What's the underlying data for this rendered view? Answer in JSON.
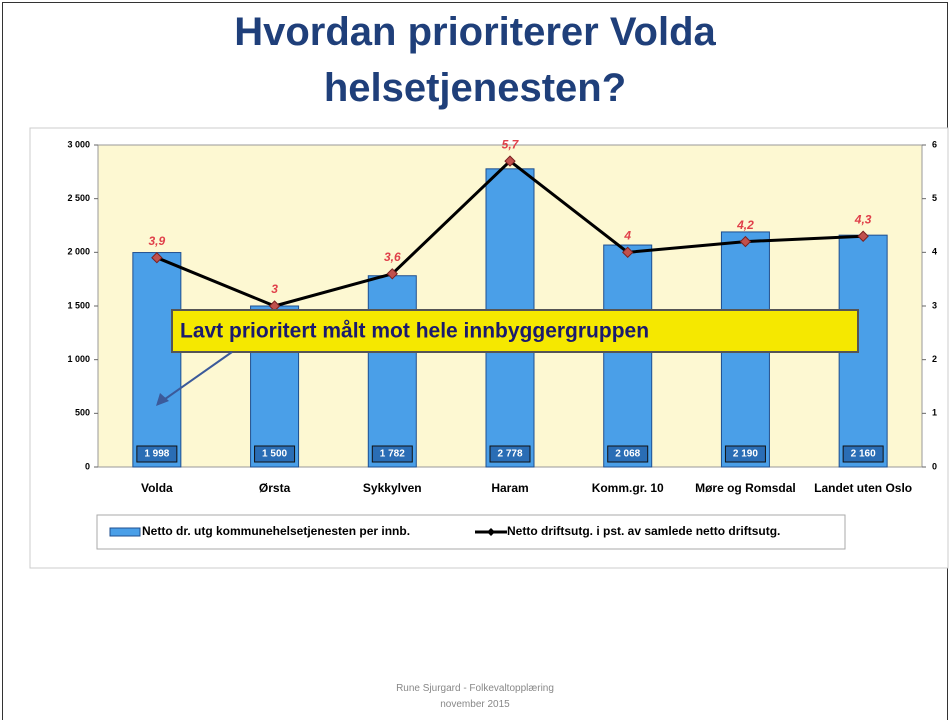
{
  "chart_data": {
    "type": "bar",
    "title": "Hvordan prioriterer Volda helsetjenesten?",
    "categories": [
      "Volda",
      "Ørsta",
      "Sykkylven",
      "Haram",
      "Komm.gr. 10",
      "Møre og Romsdal",
      "Landet uten Oslo"
    ],
    "series": [
      {
        "name": "Netto dr. utg kommunehelsetjenesten per innb.",
        "type": "bar",
        "color": "#4a9fe8",
        "values": [
          1998,
          1500,
          1782,
          2778,
          2068,
          2190,
          2160
        ],
        "value_labels": [
          "1 998",
          "1 500",
          "1 782",
          "2 778",
          "2 068",
          "2 190",
          "2 160"
        ]
      },
      {
        "name": "Netto driftsutg. i pst. av samlede netto driftsutg.",
        "type": "line",
        "axis": "y2",
        "color": "#000000",
        "marker_color": "#c0504d",
        "values": [
          3.9,
          3,
          3.6,
          5.7,
          4,
          4.2,
          4.3
        ],
        "value_labels": [
          "3,9",
          "3",
          "3,6",
          "5,7",
          "4",
          "4,2",
          "4,3"
        ]
      }
    ],
    "ylim": [
      0,
      3000
    ],
    "yticks": [
      0,
      500,
      {
        "value": 1000,
        "label": "1 000"
      },
      {
        "value": 1500,
        "label": "1 500"
      },
      {
        "value": 2000,
        "label": "2 000"
      },
      {
        "value": 2500,
        "label": "2 500"
      },
      {
        "value": 3000,
        "label": "3 000"
      }
    ],
    "y2lim": [
      0,
      6
    ],
    "y2ticks": [
      0,
      1,
      2,
      3,
      4,
      5,
      6
    ],
    "annotation": "Lavt prioritert målt mot hele innbyggergruppen",
    "legend": "bottom"
  },
  "footer": {
    "author": "Rune Sjurgard - Folkevaltopplæring",
    "date": "november 2015"
  }
}
